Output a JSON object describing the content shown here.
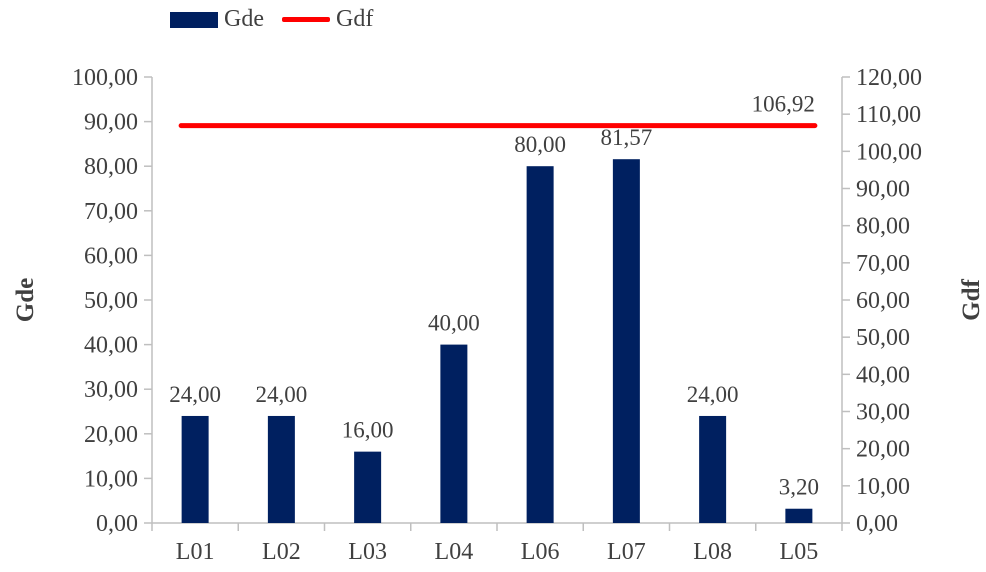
{
  "chart_data": {
    "type": "bar",
    "categories": [
      "L01",
      "L02",
      "L03",
      "L04",
      "L06",
      "L07",
      "L08",
      "L05"
    ],
    "series": [
      {
        "name": "Gde",
        "type": "bar",
        "axis": "left",
        "values": [
          24.0,
          24.0,
          16.0,
          40.0,
          80.0,
          81.57,
          24.0,
          3.2
        ],
        "labels": [
          "24,00",
          "24,00",
          "16,00",
          "40,00",
          "80,00",
          "81,57",
          "24,00",
          "3,20"
        ],
        "color": "#002060"
      },
      {
        "name": "Gdf",
        "type": "line",
        "axis": "right",
        "values": [
          106.92,
          106.92,
          106.92,
          106.92,
          106.92,
          106.92,
          106.92,
          106.92
        ],
        "end_label": "106,92",
        "color": "#ff0000"
      }
    ],
    "ylabel": "Gde",
    "y2label": "Gdf",
    "ylim": [
      0,
      100
    ],
    "y2lim": [
      0,
      120
    ],
    "yticks": [
      "0,00",
      "10,00",
      "20,00",
      "30,00",
      "40,00",
      "50,00",
      "60,00",
      "70,00",
      "80,00",
      "90,00",
      "100,00"
    ],
    "y2ticks": [
      "0,00",
      "10,00",
      "20,00",
      "30,00",
      "40,00",
      "50,00",
      "60,00",
      "70,00",
      "80,00",
      "90,00",
      "100,00",
      "110,00",
      "120,00"
    ],
    "grid": false,
    "legend_position": "top-left"
  }
}
